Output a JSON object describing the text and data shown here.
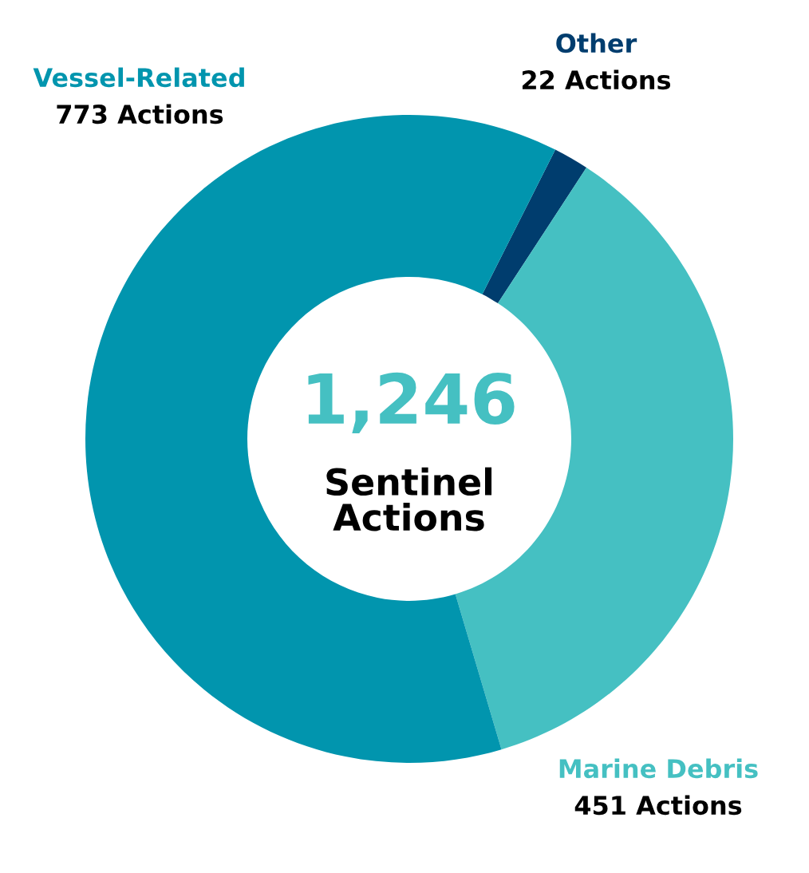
{
  "chart_data": {
    "type": "donut",
    "categories": [
      "Other",
      "Marine Debris",
      "Vessel-Related"
    ],
    "values": [
      22,
      451,
      773
    ],
    "colors": [
      "#003d6e",
      "#45c0c2",
      "#0195ae"
    ],
    "value_labels": [
      "22 Actions",
      "451 Actions",
      "773 Actions"
    ],
    "annotations": [
      "1,246",
      "Sentinel\nActions"
    ],
    "legend": false
  }
}
